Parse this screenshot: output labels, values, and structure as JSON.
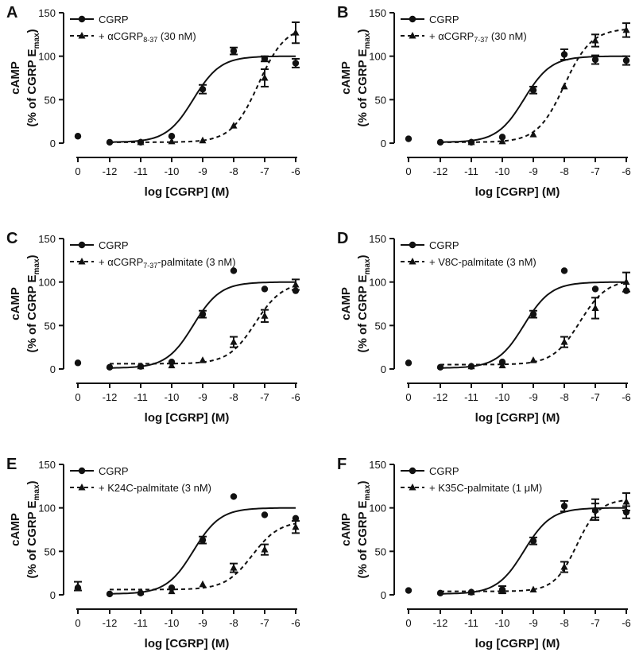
{
  "chart_data": [
    {
      "type": "scatter",
      "panel_label": "A",
      "title": "",
      "xlabel": "log [CGRP] (M)",
      "ylabel_line1": "cAMP",
      "ylabel_line2": "(% of CGRP E",
      "ylabel_sub": "max",
      "ylabel_close": ")",
      "x_tick_labels": [
        "0",
        "-12",
        "-11",
        "-10",
        "-9",
        "-8",
        "-7",
        "-6"
      ],
      "y_ticks": [
        0,
        50,
        100,
        150
      ],
      "ylim": [
        0,
        150
      ],
      "legend_position": "top-left",
      "series": [
        {
          "name": "CGRP",
          "name_sub": "",
          "name_after": "",
          "style": "solid",
          "marker": "circle",
          "x": [
            0,
            -12,
            -11,
            -10,
            -9,
            -8,
            -7,
            -6
          ],
          "y": [
            8,
            1,
            1,
            8,
            62,
            106,
            97,
            92
          ],
          "err": [
            0,
            0,
            0,
            0,
            5,
            4,
            3,
            5
          ],
          "fit": {
            "bottom": 1,
            "top": 100,
            "logEC50": -9.3,
            "hill": 1
          }
        },
        {
          "name": "+ αCGRP",
          "name_sub": "8-37",
          "name_after": " (30 nM)",
          "style": "dashed",
          "marker": "triangle",
          "x": [
            -11,
            -10,
            -9,
            -8,
            -7,
            -6
          ],
          "y": [
            1,
            2,
            3,
            20,
            75,
            127
          ],
          "err": [
            0,
            0,
            0,
            0,
            10,
            12
          ],
          "fit": {
            "bottom": 1,
            "top": 135,
            "logEC50": -7.2,
            "hill": 1
          }
        }
      ]
    },
    {
      "type": "scatter",
      "panel_label": "B",
      "title": "",
      "xlabel": "log [CGRP] (M)",
      "ylabel_line1": "cAMP",
      "ylabel_line2": "(% of CGRP E",
      "ylabel_sub": "max",
      "ylabel_close": ")",
      "x_tick_labels": [
        "0",
        "-12",
        "-11",
        "-10",
        "-9",
        "-8",
        "-7",
        "-6"
      ],
      "y_ticks": [
        0,
        50,
        100,
        150
      ],
      "ylim": [
        0,
        150
      ],
      "legend_position": "top-left",
      "series": [
        {
          "name": "CGRP",
          "name_sub": "",
          "name_after": "",
          "style": "solid",
          "marker": "circle",
          "x": [
            0,
            -12,
            -11,
            -10,
            -9,
            -8,
            -7,
            -6
          ],
          "y": [
            5,
            1,
            1,
            7,
            61,
            102,
            96,
            95
          ],
          "err": [
            0,
            0,
            0,
            0,
            4,
            6,
            5,
            5
          ],
          "fit": {
            "bottom": 1,
            "top": 100,
            "logEC50": -9.3,
            "hill": 1
          }
        },
        {
          "name": "+ αCGRP",
          "name_sub": "7-37",
          "name_after": " (30 nM)",
          "style": "dashed",
          "marker": "triangle",
          "x": [
            -11,
            -10,
            -9,
            -8,
            -7,
            -6
          ],
          "y": [
            1,
            2,
            10,
            65,
            118,
            130
          ],
          "err": [
            0,
            0,
            0,
            0,
            7,
            8
          ],
          "fit": {
            "bottom": 1,
            "top": 132,
            "logEC50": -8.0,
            "hill": 1
          }
        }
      ]
    },
    {
      "type": "scatter",
      "panel_label": "C",
      "title": "",
      "xlabel": "log [CGRP] (M)",
      "ylabel_line1": "cAMP",
      "ylabel_line2": "(% of CGRP E",
      "ylabel_sub": "max",
      "ylabel_close": ")",
      "x_tick_labels": [
        "0",
        "-12",
        "-11",
        "-10",
        "-9",
        "-8",
        "-7",
        "-6"
      ],
      "y_ticks": [
        0,
        50,
        100,
        150
      ],
      "ylim": [
        0,
        150
      ],
      "legend_position": "top-left",
      "series": [
        {
          "name": "CGRP",
          "name_sub": "",
          "name_after": "",
          "style": "solid",
          "marker": "circle",
          "x": [
            0,
            -12,
            -11,
            -10,
            -9,
            -8,
            -7,
            -6
          ],
          "y": [
            7,
            2,
            3,
            8,
            63,
            113,
            92,
            90
          ],
          "err": [
            0,
            0,
            0,
            0,
            4,
            0,
            0,
            0
          ],
          "fit": {
            "bottom": 1,
            "top": 100,
            "logEC50": -9.3,
            "hill": 1
          }
        },
        {
          "name": "+ αCGRP",
          "name_sub": "7-37",
          "name_after": "-palmitate (3 nM)",
          "style": "dashed",
          "marker": "triangle",
          "x": [
            -11,
            -10,
            -9,
            -8,
            -7,
            -6
          ],
          "y": [
            3,
            4,
            10,
            31,
            61,
            97
          ],
          "err": [
            0,
            0,
            0,
            6,
            7,
            6
          ],
          "fit": {
            "bottom": 6,
            "top": 100,
            "logEC50": -7.3,
            "hill": 1
          }
        }
      ]
    },
    {
      "type": "scatter",
      "panel_label": "D",
      "title": "",
      "xlabel": "log [CGRP] (M)",
      "ylabel_line1": "cAMP",
      "ylabel_line2": "(% of CGRP E",
      "ylabel_sub": "max",
      "ylabel_close": ")",
      "x_tick_labels": [
        "0",
        "-12",
        "-11",
        "-10",
        "-9",
        "-8",
        "-7",
        "-6"
      ],
      "y_ticks": [
        0,
        50,
        100,
        150
      ],
      "ylim": [
        0,
        150
      ],
      "legend_position": "top-left",
      "series": [
        {
          "name": "CGRP",
          "name_sub": "",
          "name_after": "",
          "style": "solid",
          "marker": "circle",
          "x": [
            0,
            -12,
            -11,
            -10,
            -9,
            -8,
            -7,
            -6
          ],
          "y": [
            7,
            2,
            3,
            8,
            63,
            113,
            92,
            90
          ],
          "err": [
            0,
            0,
            0,
            0,
            4,
            0,
            0,
            0
          ],
          "fit": {
            "bottom": 1,
            "top": 100,
            "logEC50": -9.3,
            "hill": 1
          }
        },
        {
          "name": "+ V8C-palmitate (3 nM)",
          "name_sub": "",
          "name_after": "",
          "style": "dashed",
          "marker": "triangle",
          "x": [
            -11,
            -10,
            -9,
            -8,
            -7,
            -6
          ],
          "y": [
            3,
            4,
            10,
            31,
            70,
            100
          ],
          "err": [
            0,
            0,
            0,
            6,
            12,
            11
          ],
          "fit": {
            "bottom": 5,
            "top": 103,
            "logEC50": -7.5,
            "hill": 1
          }
        }
      ]
    },
    {
      "type": "scatter",
      "panel_label": "E",
      "title": "",
      "xlabel": "log [CGRP] (M)",
      "ylabel_line1": "cAMP",
      "ylabel_line2": "(% of CGRP E",
      "ylabel_sub": "max",
      "ylabel_close": ")",
      "x_tick_labels": [
        "0",
        "-12",
        "-11",
        "-10",
        "-9",
        "-8",
        "-7",
        "-6"
      ],
      "y_ticks": [
        0,
        50,
        100,
        150
      ],
      "ylim": [
        0,
        150
      ],
      "legend_position": "top-left",
      "series": [
        {
          "name": "CGRP",
          "name_sub": "",
          "name_after": "",
          "style": "solid",
          "marker": "circle",
          "x": [
            0,
            -12,
            -11,
            -10,
            -9,
            -8,
            -7,
            -6
          ],
          "y": [
            8,
            1,
            2,
            8,
            63,
            113,
            92,
            88
          ],
          "err": [
            0,
            0,
            0,
            0,
            4,
            0,
            0,
            0
          ],
          "fit": {
            "bottom": 1,
            "top": 100,
            "logEC50": -9.3,
            "hill": 1
          }
        },
        {
          "name": "+ K24C-palmitate (3 nM)",
          "name_sub": "",
          "name_after": "",
          "style": "dashed",
          "marker": "triangle",
          "x": [
            0,
            -11,
            -10,
            -9,
            -8,
            -7,
            -6
          ],
          "y": [
            10,
            3,
            4,
            12,
            31,
            52,
            78
          ],
          "err": [
            5,
            0,
            0,
            0,
            5,
            6,
            7
          ],
          "fit": {
            "bottom": 6,
            "top": 85,
            "logEC50": -7.4,
            "hill": 1
          }
        }
      ]
    },
    {
      "type": "scatter",
      "panel_label": "F",
      "title": "",
      "xlabel": "log [CGRP] (M)",
      "ylabel_line1": "cAMP",
      "ylabel_line2": "(% of CGRP E",
      "ylabel_sub": "max",
      "ylabel_close": ")",
      "x_tick_labels": [
        "0",
        "-12",
        "-11",
        "-10",
        "-9",
        "-8",
        "-7",
        "-6"
      ],
      "y_ticks": [
        0,
        50,
        100,
        150
      ],
      "ylim": [
        0,
        150
      ],
      "legend_position": "top-left",
      "series": [
        {
          "name": "CGRP",
          "name_sub": "",
          "name_after": "",
          "style": "solid",
          "marker": "circle",
          "x": [
            0,
            -12,
            -11,
            -10,
            -9,
            -8,
            -7,
            -6
          ],
          "y": [
            5,
            2,
            3,
            6,
            62,
            102,
            97,
            95
          ],
          "err": [
            0,
            0,
            0,
            4,
            4,
            6,
            8,
            7
          ],
          "fit": {
            "bottom": 1,
            "top": 100,
            "logEC50": -9.3,
            "hill": 1
          }
        },
        {
          "name": "+ K35C-palmitate (1 μM)",
          "name_sub": "",
          "name_after": "",
          "style": "dashed",
          "marker": "triangle",
          "x": [
            -11,
            -10,
            -9,
            -8,
            -7,
            -6
          ],
          "y": [
            3,
            4,
            6,
            32,
            98,
            107
          ],
          "err": [
            0,
            0,
            0,
            6,
            12,
            10
          ],
          "fit": {
            "bottom": 4,
            "top": 110,
            "logEC50": -7.6,
            "hill": 1.2
          }
        }
      ]
    }
  ]
}
